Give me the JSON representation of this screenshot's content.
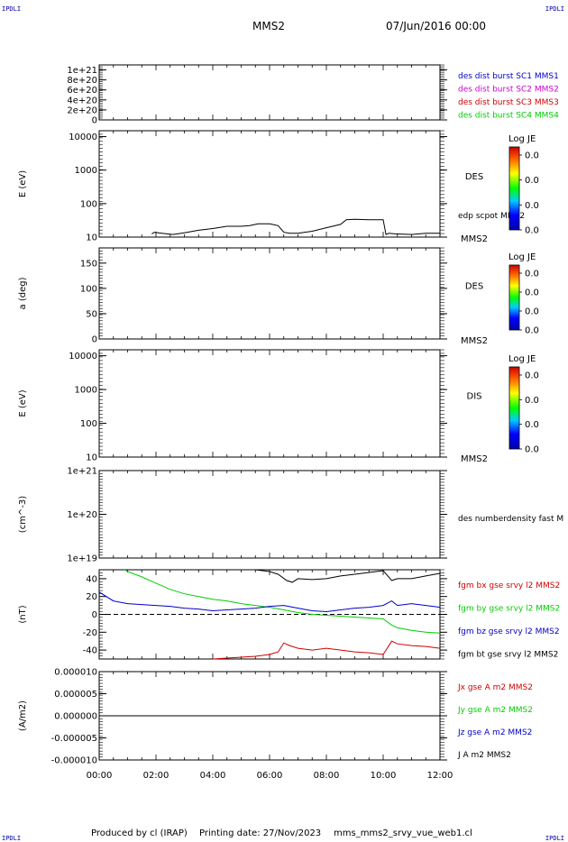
{
  "header": {
    "corner_tl": "IPDLI",
    "corner_tr": "IPDLI",
    "corner_bl": "IPDLI",
    "corner_br": "IPDLI",
    "spacecraft": "MMS2",
    "datetime": "07/Jun/2016 00:00"
  },
  "footer": {
    "produced_by": "Produced by cl (IRAP)",
    "printing_date": "Printing date: 27/Nov/2023",
    "script_name": "mms_mms2_srvy_vue_web1.cl"
  },
  "colors": {
    "black": "#000000",
    "blue": "#0000c8",
    "magenta": "#d000d0",
    "red": "#d00000",
    "green": "#00cc00",
    "corner": "#0000aa"
  },
  "chart_data": [
    {
      "id": "dist",
      "type": "line",
      "ylabel": "",
      "y_ticks": [
        "1e+21",
        "8e+20",
        "6e+20",
        "4e+20",
        "2e+20",
        "0"
      ],
      "ylim": [
        0,
        1.1e+21
      ],
      "reference_line": 0,
      "legend": [
        {
          "label": "des dist burst SC1 MMS1",
          "color": "#0000c8"
        },
        {
          "label": "des dist burst SC2 MMS2",
          "color": "#d000d0"
        },
        {
          "label": "des dist burst SC3 MMS3",
          "color": "#d00000"
        },
        {
          "label": "des dist burst SC4 MMS4",
          "color": "#00cc00"
        }
      ]
    },
    {
      "id": "des_energy",
      "type": "line",
      "ylabel": "E (eV)",
      "scale": "log",
      "y_ticks": [
        "10000",
        "1000",
        "100",
        "10"
      ],
      "ylim": [
        10,
        15000
      ],
      "side_label": "DES",
      "footer_label": "MMS2",
      "line_label": "edp scpot MMS2",
      "colorbar": {
        "title": "Log JE",
        "ticks": [
          "0.0",
          "0.0",
          "0.0",
          "0.0"
        ]
      },
      "series": [
        {
          "name": "edp scpot MMS2",
          "color": "#000000",
          "x": [
            1.85,
            1.95,
            2.2,
            2.6,
            3.0,
            3.5,
            4.0,
            4.5,
            5.0,
            5.3,
            5.6,
            6.0,
            6.3,
            6.5,
            6.7,
            7.0,
            7.5,
            8.0,
            8.5,
            8.7,
            9.0,
            9.5,
            10.0,
            10.1,
            10.2,
            10.4,
            11.0,
            11.5,
            12.0
          ],
          "y": [
            12.5,
            14,
            13,
            12,
            13.5,
            16,
            18,
            21,
            21,
            22,
            25,
            25,
            22,
            14,
            13,
            13,
            15,
            19,
            24,
            33,
            34,
            33,
            33,
            12,
            13,
            12.5,
            12,
            13,
            13
          ]
        }
      ]
    },
    {
      "id": "pitch",
      "type": "heatmap",
      "ylabel": "a (deg)",
      "y_ticks": [
        "150",
        "100",
        "50",
        "0"
      ],
      "ylim": [
        0,
        180
      ],
      "side_label": "DES",
      "footer_label": "MMS2",
      "colorbar": {
        "title": "Log JE",
        "ticks": [
          "0.0",
          "0.0",
          "0.0",
          "0.0"
        ]
      }
    },
    {
      "id": "dis_energy",
      "type": "heatmap",
      "ylabel": "E (eV)",
      "scale": "log",
      "y_ticks": [
        "10000",
        "1000",
        "100",
        "10"
      ],
      "ylim": [
        10,
        15000
      ],
      "side_label": "DIS",
      "footer_label": "MMS2",
      "colorbar": {
        "title": "Log JE",
        "ticks": [
          "0.0",
          "0.0",
          "0.0",
          "0.0"
        ]
      }
    },
    {
      "id": "density",
      "type": "line",
      "ylabel": "(cm^-3)",
      "scale": "log",
      "y_ticks": [
        "1e+21",
        "1e+20",
        "1e+19"
      ],
      "ylim": [
        1e+19,
        1e+21
      ],
      "legend": [
        {
          "label": "des numberdensity fast M",
          "color": "#000000"
        }
      ]
    },
    {
      "id": "fgm",
      "type": "line",
      "ylabel": "(nT)",
      "y_ticks": [
        "40",
        "20",
        "0",
        "-20",
        "-40"
      ],
      "ylim": [
        -50,
        50
      ],
      "reference_line": 0,
      "legend": [
        {
          "label": "fgm bx gse srvy l2 MMS2",
          "color": "#d00000"
        },
        {
          "label": "fgm by gse srvy l2 MMS2",
          "color": "#00cc00"
        },
        {
          "label": "fgm bz gse srvy l2 MMS2",
          "color": "#0000c8"
        },
        {
          "label": "fgm bt gse srvy l2 MMS2",
          "color": "#000000"
        }
      ],
      "series": [
        {
          "name": "fgm bt gse srvy l2 MMS2",
          "color": "#000000",
          "x": [
            5.5,
            6.0,
            6.3,
            6.6,
            6.8,
            7.0,
            7.5,
            8.0,
            8.5,
            9.0,
            9.5,
            10.0,
            10.3,
            10.5,
            11.0,
            11.5,
            12.0
          ],
          "y": [
            50,
            48,
            45,
            38,
            36,
            40,
            39,
            40,
            43,
            45,
            47,
            49,
            38,
            40,
            40,
            43,
            46
          ]
        },
        {
          "name": "fgm by gse srvy l2 MMS2",
          "color": "#00cc00",
          "x": [
            0.9,
            1.0,
            1.5,
            2.0,
            2.5,
            3.0,
            3.5,
            4.0,
            4.5,
            5.0,
            5.5,
            6.0,
            6.5,
            7.0,
            7.5,
            8.0,
            8.5,
            9.0,
            9.5,
            10.0,
            10.3,
            10.5,
            11.0,
            11.5,
            12.0
          ],
          "y": [
            50,
            48,
            42,
            35,
            28,
            23,
            20,
            17,
            15,
            12,
            10,
            8,
            5,
            2,
            0,
            -1,
            -2,
            -3,
            -4,
            -5,
            -12,
            -15,
            -18,
            -20,
            -21
          ]
        },
        {
          "name": "fgm bz gse srvy l2 MMS2",
          "color": "#0000c8",
          "x": [
            0.0,
            0.5,
            1.0,
            1.5,
            2.0,
            2.5,
            3.0,
            3.5,
            4.0,
            4.5,
            5.0,
            5.5,
            6.0,
            6.5,
            7.0,
            7.5,
            8.0,
            8.5,
            9.0,
            9.5,
            10.0,
            10.3,
            10.5,
            11.0,
            11.5,
            12.0
          ],
          "y": [
            25,
            15,
            12,
            11,
            10,
            9,
            7,
            6,
            4,
            5,
            6,
            7,
            9,
            10,
            7,
            4,
            3,
            5,
            7,
            8,
            10,
            15,
            10,
            12,
            10,
            8
          ]
        },
        {
          "name": "fgm bx gse srvy l2 MMS2",
          "color": "#d00000",
          "x": [
            4.0,
            4.5,
            5.0,
            5.5,
            6.0,
            6.3,
            6.5,
            6.7,
            7.0,
            7.5,
            8.0,
            8.5,
            9.0,
            9.5,
            10.0,
            10.3,
            10.5,
            11.0,
            11.5,
            12.0
          ],
          "y": [
            -50,
            -49,
            -48,
            -47,
            -45,
            -42,
            -32,
            -35,
            -38,
            -40,
            -38,
            -40,
            -42,
            -43,
            -45,
            -30,
            -33,
            -35,
            -36,
            -38
          ]
        }
      ]
    },
    {
      "id": "current",
      "type": "line",
      "ylabel": "(A/m2)",
      "y_ticks": [
        "0.000010",
        "0.000005",
        "0.000000",
        "-0.000005",
        "-0.000010"
      ],
      "ylim": [
        -1e-05,
        1e-05
      ],
      "legend": [
        {
          "label": "Jx gse A m2 MMS2",
          "color": "#d00000"
        },
        {
          "label": "Jy gse A m2 MMS2",
          "color": "#00cc00"
        },
        {
          "label": "Jz gse A m2 MMS2",
          "color": "#0000c8"
        },
        {
          "label": "J A m2 MMS2",
          "color": "#000000"
        }
      ],
      "series": [
        {
          "name": "J A m2 MMS2",
          "color": "#000000",
          "x": [
            0,
            12
          ],
          "y": [
            0,
            0
          ]
        }
      ]
    }
  ],
  "x_axis": {
    "range_hours": [
      0,
      12
    ],
    "tick_labels": [
      "00:00",
      "02:00",
      "04:00",
      "06:00",
      "08:00",
      "10:00",
      "12:00"
    ]
  }
}
